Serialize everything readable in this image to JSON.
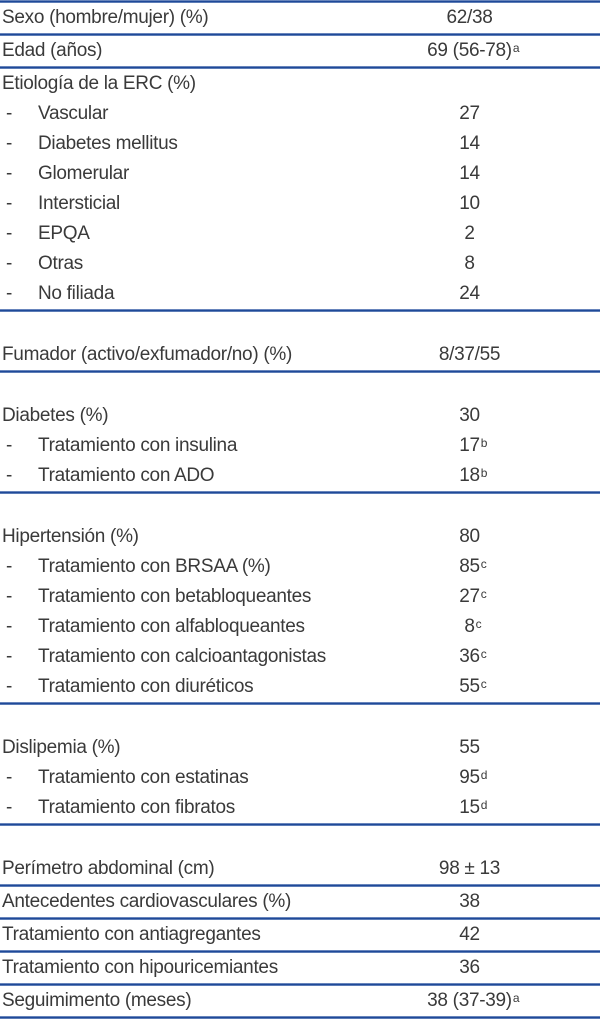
{
  "colors": {
    "separator_blue": "#1f4998",
    "separator_edge_blue": "#a9bbdc",
    "text": "#3a3a3a",
    "background": "#ffffff"
  },
  "rows": [
    {
      "label": "Sexo (hombre/mujer) (%)",
      "bullet": "",
      "value": "62/38",
      "sup": ""
    },
    {
      "label": "Edad (años)",
      "bullet": "",
      "value": "69 (56-78)",
      "sup": "a"
    },
    {
      "label": "Etiología de la ERC (%)",
      "bullet": "",
      "value": "",
      "sup": ""
    },
    {
      "label": "Vascular",
      "bullet": "-",
      "value": "27",
      "sup": ""
    },
    {
      "label": "Diabetes mellitus",
      "bullet": "-",
      "value": "14",
      "sup": ""
    },
    {
      "label": "Glomerular",
      "bullet": "-",
      "value": "14",
      "sup": ""
    },
    {
      "label": "Intersticial",
      "bullet": "-",
      "value": "10",
      "sup": ""
    },
    {
      "label": "EPQA",
      "bullet": "-",
      "value": "2",
      "sup": ""
    },
    {
      "label": "Otras",
      "bullet": "-",
      "value": "8",
      "sup": ""
    },
    {
      "label": "No filiada",
      "bullet": "-",
      "value": "24",
      "sup": ""
    },
    {
      "label": "Fumador (activo/exfumador/no) (%)",
      "bullet": "",
      "value": "8/37/55",
      "sup": ""
    },
    {
      "label": "Diabetes (%)",
      "bullet": "",
      "value": "30",
      "sup": ""
    },
    {
      "label": "Tratamiento con insulina",
      "bullet": "-",
      "value": "17",
      "sup": "b"
    },
    {
      "label": "Tratamiento con ADO",
      "bullet": "-",
      "value": "18",
      "sup": "b"
    },
    {
      "label": "Hipertensión (%)",
      "bullet": "",
      "value": "80",
      "sup": ""
    },
    {
      "label": "Tratamiento con BRSAA (%)",
      "bullet": "-",
      "value": "85",
      "sup": "c"
    },
    {
      "label": "Tratamiento con betabloqueantes",
      "bullet": "-",
      "value": "27",
      "sup": "c"
    },
    {
      "label": "Tratamiento con alfabloqueantes",
      "bullet": "-",
      "value": "8",
      "sup": "c"
    },
    {
      "label": "Tratamiento con calcioantagonistas",
      "bullet": "-",
      "value": "36",
      "sup": "c"
    },
    {
      "label": "Tratamiento con diuréticos",
      "bullet": "-",
      "value": "55",
      "sup": "c"
    },
    {
      "label": "Dislipemia (%)",
      "bullet": "",
      "value": "55",
      "sup": ""
    },
    {
      "label": "Tratamiento con estatinas",
      "bullet": "-",
      "value": "95",
      "sup": "d"
    },
    {
      "label": "Tratamiento con fibratos",
      "bullet": "-",
      "value": "15",
      "sup": "d"
    },
    {
      "label": "Perímetro abdominal (cm)",
      "bullet": "",
      "value": "98 ± 13",
      "sup": ""
    },
    {
      "label": "Antecedentes cardiovasculares (%)",
      "bullet": "",
      "value": "38",
      "sup": ""
    },
    {
      "label": "Tratamiento con antiagregantes",
      "bullet": "",
      "value": "42",
      "sup": ""
    },
    {
      "label": "Tratamiento con hipouricemiantes",
      "bullet": "",
      "value": "36",
      "sup": ""
    },
    {
      "label": "Seguimimento (meses)",
      "bullet": "",
      "value": "38 (37-39)",
      "sup": "a"
    }
  ]
}
